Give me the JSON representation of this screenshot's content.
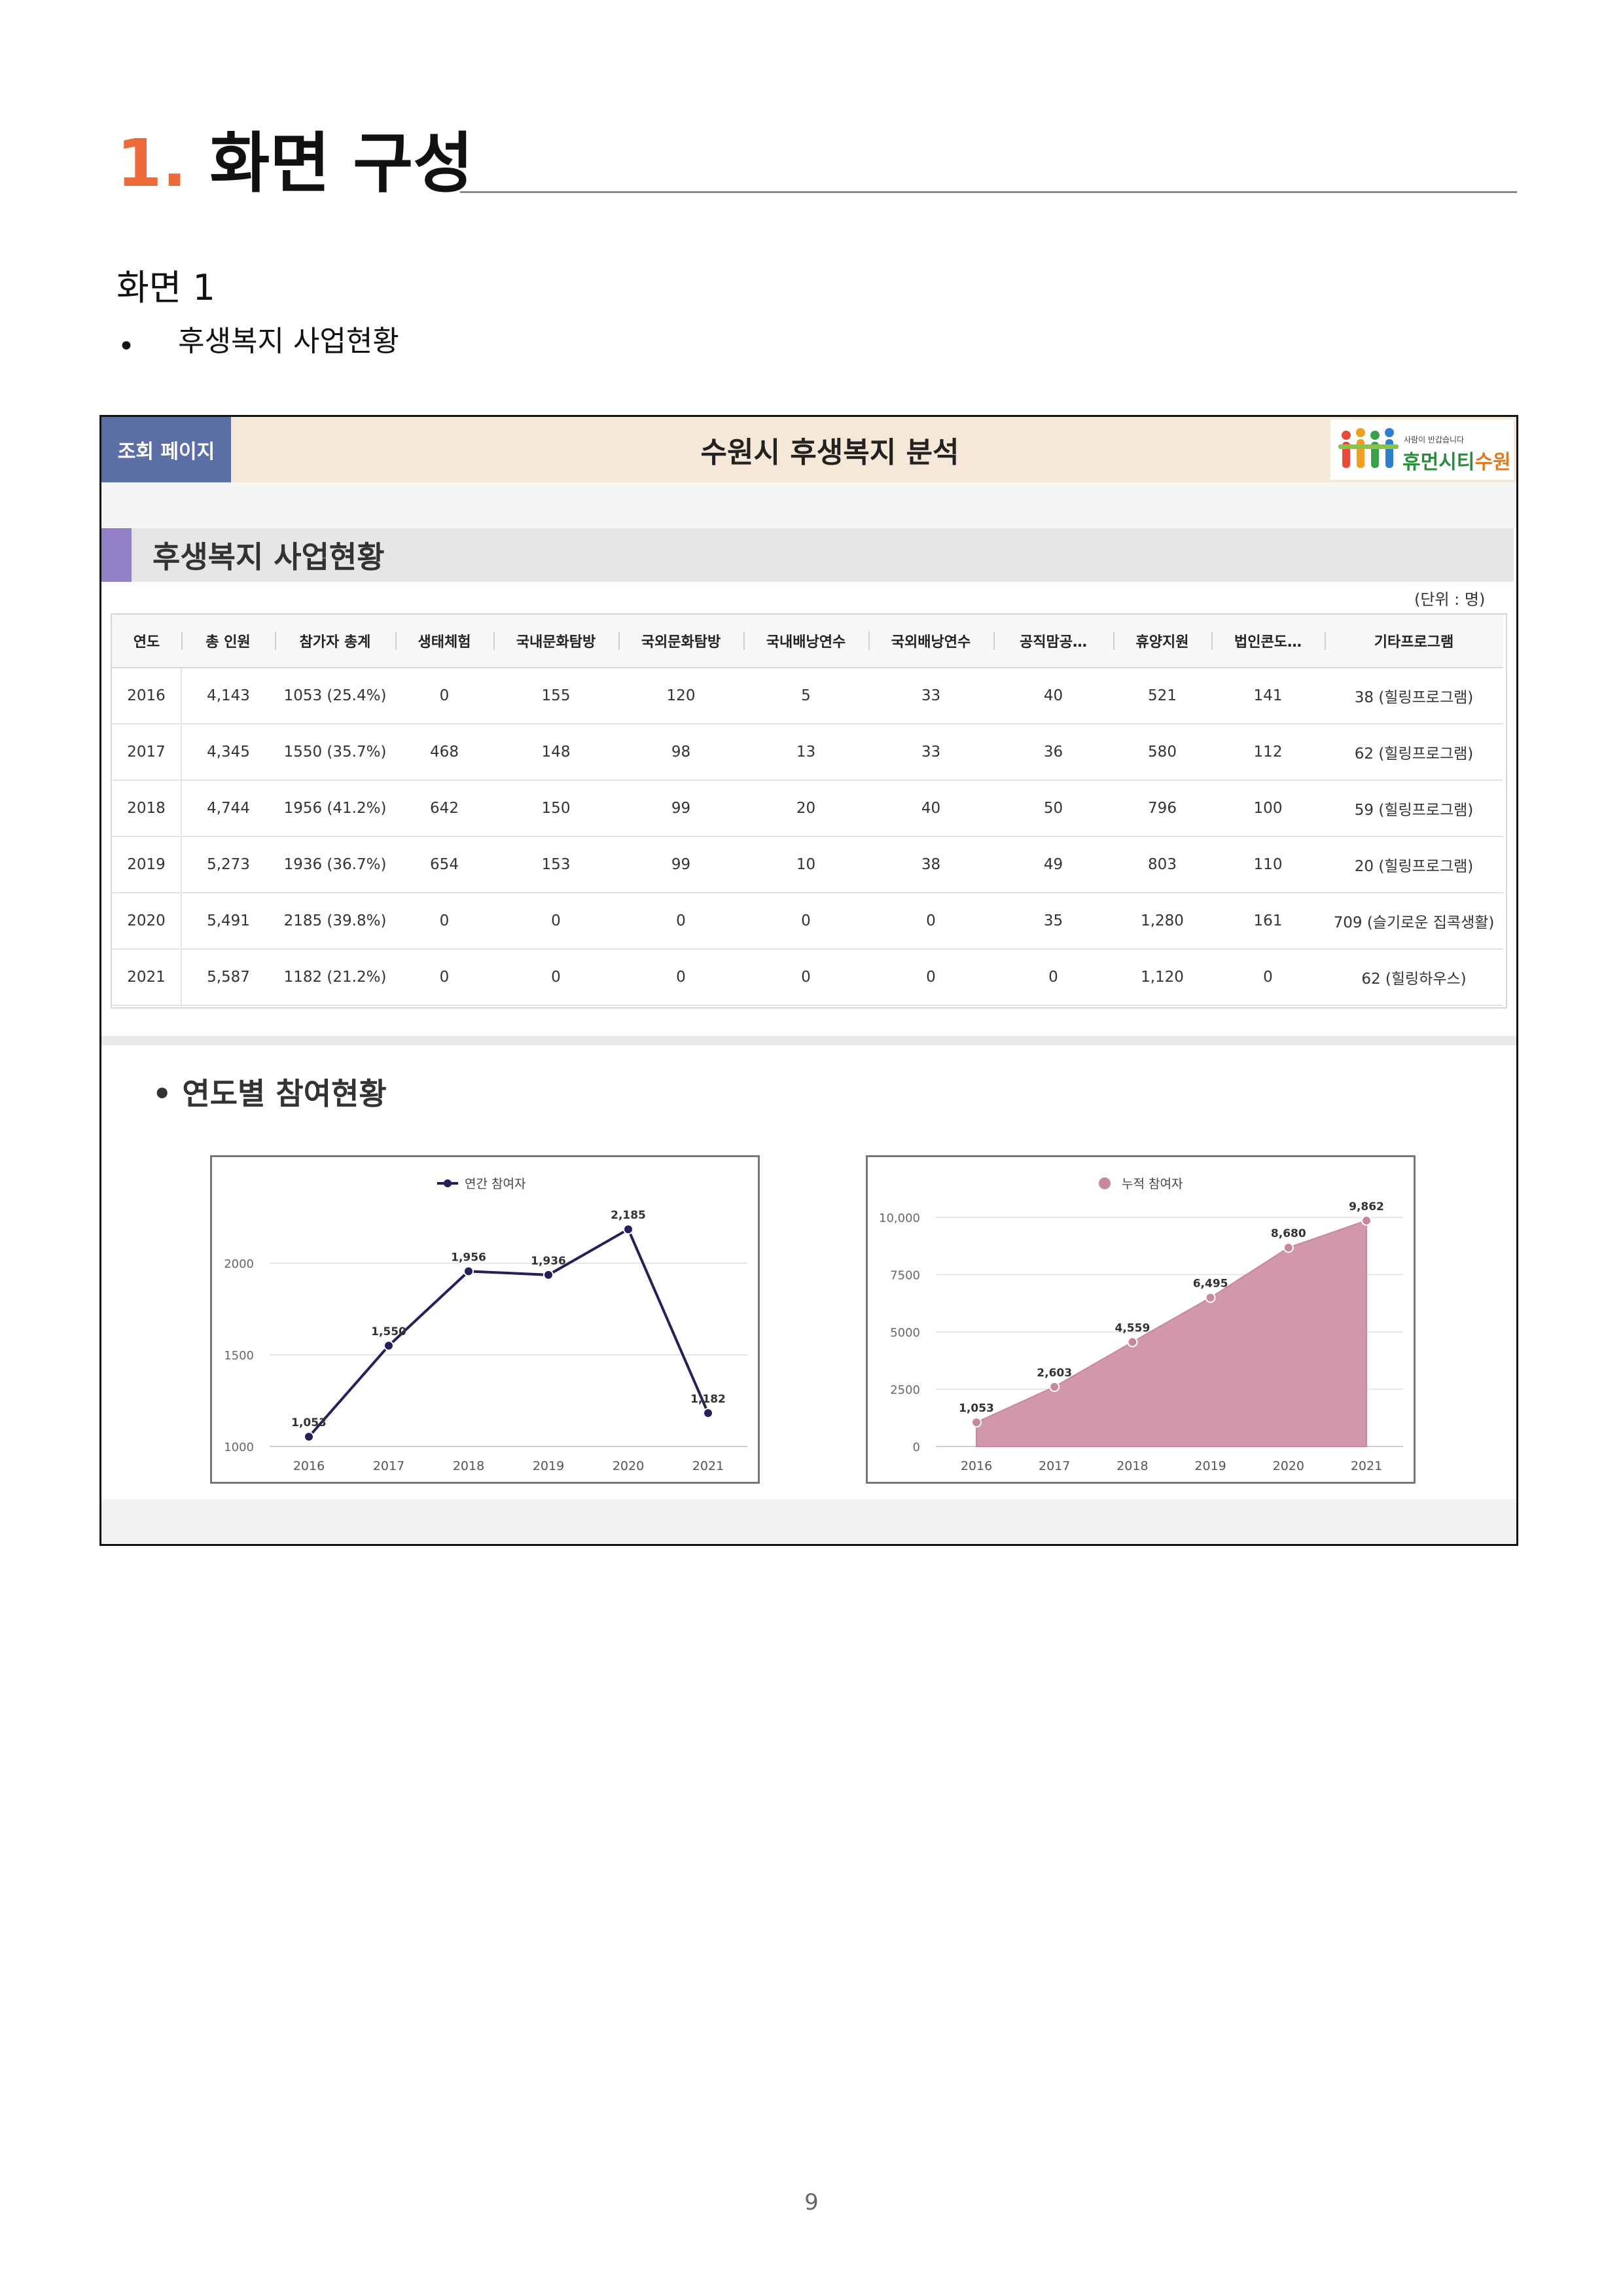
{
  "document": {
    "heading_number": "1.",
    "heading_text": "화면 구성",
    "screen_label": "화면 1",
    "bullet": "•",
    "bullet_text": "후생복지 사업현황",
    "page_number": "9"
  },
  "app": {
    "page_tag": "조회 페이지",
    "title": "수원시 후생복지 분석",
    "logo_small": "사람이 반갑습니다",
    "logo_main_a": "휴먼시티",
    "logo_main_b": "수원",
    "section_title": "후생복지 사업현황",
    "unit_note": "(단위 : 명)",
    "sub_title": "• 연도별 참여현황"
  },
  "table": {
    "headers": [
      "연도",
      "총 인원",
      "참가자 총계",
      "생태체험",
      "국내문화탐방",
      "국외문화탐방",
      "국내배낭연수",
      "국외배낭연수",
      "공직맘공…",
      "휴양지원",
      "법인콘도…",
      "기타프로그램"
    ],
    "rows": [
      [
        "2016",
        "4,143",
        "1053 (25.4%)",
        "0",
        "155",
        "120",
        "5",
        "33",
        "40",
        "521",
        "141",
        "38 (힐링프로그램)"
      ],
      [
        "2017",
        "4,345",
        "1550 (35.7%)",
        "468",
        "148",
        "98",
        "13",
        "33",
        "36",
        "580",
        "112",
        "62 (힐링프로그램)"
      ],
      [
        "2018",
        "4,744",
        "1956 (41.2%)",
        "642",
        "150",
        "99",
        "20",
        "40",
        "50",
        "796",
        "100",
        "59 (힐링프로그램)"
      ],
      [
        "2019",
        "5,273",
        "1936 (36.7%)",
        "654",
        "153",
        "99",
        "10",
        "38",
        "49",
        "803",
        "110",
        "20 (힐링프로그램)"
      ],
      [
        "2020",
        "5,491",
        "2185 (39.8%)",
        "0",
        "0",
        "0",
        "0",
        "0",
        "35",
        "1,280",
        "161",
        "709 (슬기로운 집콕생활)"
      ],
      [
        "2021",
        "5,587",
        "1182 (21.2%)",
        "0",
        "0",
        "0",
        "0",
        "0",
        "0",
        "1,120",
        "0",
        "62 (힐링하우스)"
      ]
    ]
  },
  "colors": {
    "heading_number": "#ee6a3a",
    "page_tag_bg": "#5b6fa6",
    "topbar_bg": "#f6e8d8",
    "section_accent": "#9482c8",
    "line_series": "#23205a",
    "area_series": "#c9869f"
  },
  "chart_data": [
    {
      "type": "line",
      "legend": "연간 참여자",
      "legend_position": "top-center",
      "x": [
        "2016",
        "2017",
        "2018",
        "2019",
        "2020",
        "2021"
      ],
      "values": [
        1053,
        1550,
        1956,
        1936,
        2185,
        1182
      ],
      "data_labels": [
        "1,053",
        "1,550",
        "1,956",
        "1,936",
        "2,185",
        "1,182"
      ],
      "yticks": [
        1000,
        1500,
        2000
      ],
      "ytick_labels": [
        "1000",
        "1500",
        "2000"
      ],
      "ylim": [
        1000,
        2300
      ],
      "grid": true
    },
    {
      "type": "area",
      "legend": "누적 참여자",
      "legend_position": "top-center",
      "x": [
        "2016",
        "2017",
        "2018",
        "2019",
        "2020",
        "2021"
      ],
      "values": [
        1053,
        2603,
        4559,
        6495,
        8680,
        9862
      ],
      "data_labels": [
        "1,053",
        "2,603",
        "4,559",
        "6,495",
        "8,680",
        "9,862"
      ],
      "yticks": [
        0,
        2500,
        5000,
        7500,
        10000
      ],
      "ytick_labels": [
        "0",
        "2500",
        "5000",
        "7500",
        "10,000"
      ],
      "ylim": [
        0,
        10000
      ],
      "grid": true
    }
  ]
}
